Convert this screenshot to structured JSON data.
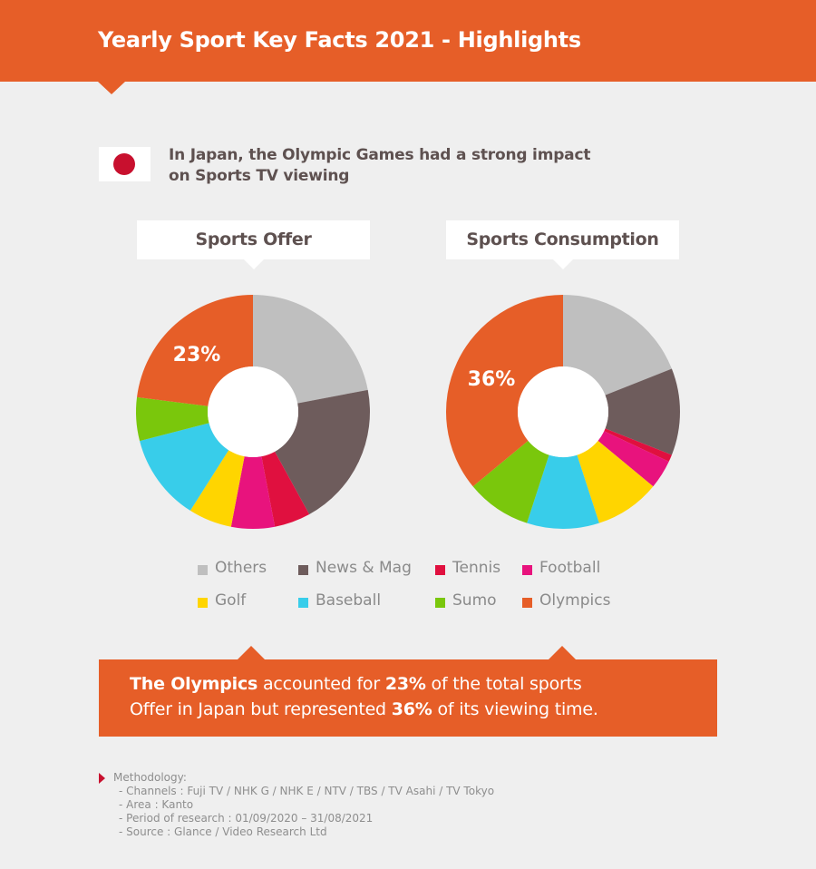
{
  "header": {
    "title": "Yearly Sport Key Facts 2021 - Highlights"
  },
  "intro": {
    "text_line1": "In Japan, the Olympic Games had a strong impact",
    "text_line2": "on Sports TV viewing"
  },
  "colors": {
    "accent": "#e65e28",
    "Others": "#bfbfbf",
    "News & Mag": "#6e5c5c",
    "Tennis": "#e0103f",
    "Football": "#e8137d",
    "Golf": "#ffd500",
    "Baseball": "#38cdea",
    "Sumo": "#7ac70c",
    "Olympics": "#e65e28"
  },
  "chart_data": [
    {
      "type": "pie",
      "title": "Sports Offer",
      "categories": [
        "Others",
        "News & Mag",
        "Tennis",
        "Football",
        "Golf",
        "Baseball",
        "Sumo",
        "Olympics"
      ],
      "values": [
        22,
        20,
        5,
        6,
        6,
        12,
        6,
        23
      ],
      "highlight_label": "23%"
    },
    {
      "type": "pie",
      "title": "Sports Consumption",
      "categories": [
        "Others",
        "News & Mag",
        "Tennis",
        "Football",
        "Golf",
        "Baseball",
        "Sumo",
        "Olympics"
      ],
      "values": [
        19,
        12,
        1,
        4,
        9,
        10,
        9,
        36
      ],
      "highlight_label": "36%"
    }
  ],
  "legend": [
    "Others",
    "News & Mag",
    "Tennis",
    "Football",
    "Golf",
    "Baseball",
    "Sumo",
    "Olympics"
  ],
  "callout": {
    "part1": "The Olympics",
    "part2": " accounted for ",
    "part3": "23%",
    "part4": " of the total sports",
    "part5": "Offer in Japan but represented ",
    "part6": "36%",
    "part7": " of its viewing time."
  },
  "methodology": {
    "title": "Methodology:",
    "lines": [
      "- Channels : Fuji TV / NHK G / NHK E / NTV / TBS / TV Asahi / TV Tokyo",
      "- Area : Kanto",
      "- Period of research : 01/09/2020 – 31/08/2021",
      "- Source : Glance / Video Research Ltd"
    ]
  }
}
